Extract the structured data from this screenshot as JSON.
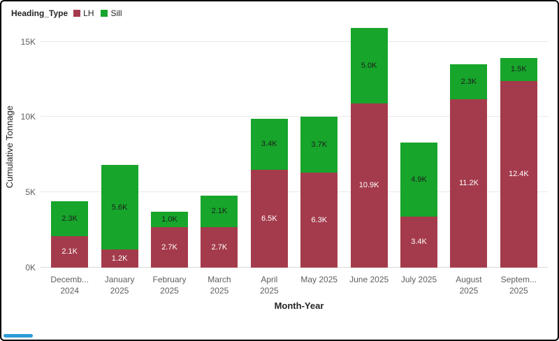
{
  "frame": {
    "background": "#ffffff",
    "border_color": "#000000",
    "accent_blue": "#2e9bd6"
  },
  "legend": {
    "title": "Heading_Type",
    "items": [
      {
        "label": "LH",
        "color": "#A43B4C"
      },
      {
        "label": "Sill",
        "color": "#17A52B"
      }
    ]
  },
  "chart_data": {
    "type": "bar",
    "stacked": true,
    "title": "",
    "xlabel": "Month-Year",
    "ylabel": "Cumulative Tonnage",
    "ylim": [
      0,
      16000
    ],
    "grid": true,
    "legend_position": "top-left",
    "yticks": [
      {
        "label": "0K",
        "value": 0
      },
      {
        "label": "5K",
        "value": 5000
      },
      {
        "label": "10K",
        "value": 10000
      },
      {
        "label": "15K",
        "value": 15000
      }
    ],
    "categories": [
      {
        "lines": [
          "Decemb...",
          "2024"
        ]
      },
      {
        "lines": [
          "January",
          "2025"
        ]
      },
      {
        "lines": [
          "February",
          "2025"
        ]
      },
      {
        "lines": [
          "March",
          "2025"
        ]
      },
      {
        "lines": [
          "April",
          "2025"
        ]
      },
      {
        "lines": [
          "May 2025"
        ]
      },
      {
        "lines": [
          "June 2025"
        ]
      },
      {
        "lines": [
          "July 2025"
        ]
      },
      {
        "lines": [
          "August",
          "2025"
        ]
      },
      {
        "lines": [
          "Septem...",
          "2025"
        ]
      }
    ],
    "series": [
      {
        "name": "LH",
        "color": "#A43B4C",
        "label_color": "#ffffff",
        "values": [
          2100,
          1200,
          2700,
          2700,
          6500,
          6300,
          10900,
          3400,
          11200,
          12400
        ],
        "labels": [
          "2.1K",
          "1.2K",
          "2.7K",
          "2.7K",
          "6.5K",
          "6.3K",
          "10.9K",
          "3.4K",
          "11.2K",
          "12.4K"
        ]
      },
      {
        "name": "Sill",
        "color": "#17A52B",
        "label_color": "#1d1d1d",
        "values": [
          2300,
          5600,
          1000,
          2100,
          3400,
          3700,
          5000,
          4900,
          2300,
          1500
        ],
        "labels": [
          "2.3K",
          "5.6K",
          "1.0K",
          "2.1K",
          "3.4K",
          "3.7K",
          "5.0K",
          "4.9K",
          "2.3K",
          "1.5K"
        ]
      }
    ]
  }
}
